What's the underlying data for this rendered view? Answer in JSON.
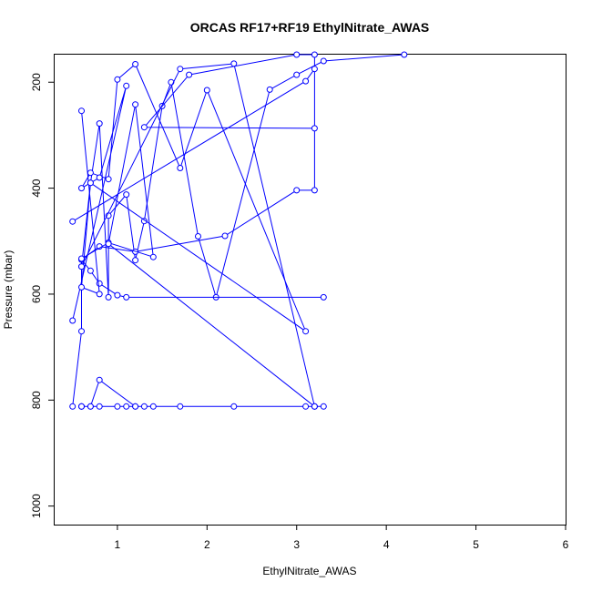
{
  "chart_data": {
    "type": "line",
    "title": "ORCAS RF17+RF19 EthylNitrate_AWAS",
    "xlabel": "EthylNitrate_AWAS",
    "ylabel": "Pressure (mbar)",
    "xlim": [
      0.3,
      6.0
    ],
    "ylim": [
      1035,
      148
    ],
    "y_inverted": true,
    "grid": false,
    "line_color": "#0000ff",
    "marker": "open-circle",
    "x_ticks": [
      1,
      2,
      3,
      4,
      5,
      6
    ],
    "y_ticks": [
      200,
      400,
      600,
      800,
      1000
    ],
    "series": [
      {
        "x": [
          0.5,
          0.6,
          0.6,
          0.7,
          0.8,
          0.9,
          0.9,
          1.1,
          1.2,
          1.3,
          1.5,
          1.6,
          1.9,
          2.1,
          2.7,
          3.0,
          3.3,
          4.2
        ],
        "y": [
          812,
          670,
          548,
          390,
          278,
          606,
          452,
          412,
          536,
          462,
          245,
          200,
          491,
          606,
          214,
          186,
          160,
          148
        ]
      },
      {
        "x": [
          0.6,
          0.7,
          0.8,
          1.0,
          1.1,
          1.2,
          1.3,
          1.4,
          1.7,
          2.3,
          3.1,
          3.2,
          3.2,
          3.3,
          1.2,
          0.8,
          0.7,
          0.6,
          0.6
        ],
        "y": [
          812,
          812,
          812,
          812,
          812,
          812,
          812,
          812,
          812,
          812,
          812,
          812,
          812,
          812,
          812,
          762,
          812,
          812,
          812
        ]
      },
      {
        "x": [
          0.5,
          3.1,
          3.2,
          3.2,
          1.3,
          1.8,
          3.0,
          3.2,
          3.2,
          3.0,
          2.2,
          1.2,
          0.8,
          0.6,
          0.7,
          0.8,
          1.0,
          1.1,
          3.3
        ],
        "y": [
          463,
          198,
          175,
          287,
          285,
          186,
          148,
          148,
          404,
          404,
          490,
          520,
          510,
          535,
          556,
          580,
          602,
          606,
          606
        ]
      },
      {
        "x": [
          0.5,
          1.1,
          0.8,
          0.6,
          0.7,
          0.9,
          1.0,
          1.2,
          1.7,
          2.0,
          3.1,
          0.7,
          0.6,
          0.8,
          0.6
        ],
        "y": [
          650,
          207,
          380,
          400,
          371,
          383,
          195,
          166,
          362,
          215,
          670,
          390,
          587,
          600,
          254
        ]
      },
      {
        "x": [
          0.9,
          1.2,
          1.4,
          0.9,
          0.6,
          0.6,
          1.7,
          2.3,
          3.2,
          0.9
        ],
        "y": [
          505,
          242,
          530,
          503,
          533,
          548,
          175,
          165,
          812,
          505
        ]
      }
    ]
  }
}
